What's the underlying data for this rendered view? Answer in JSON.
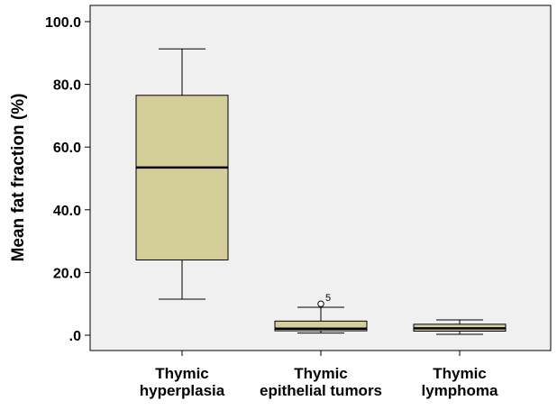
{
  "chart_data": {
    "type": "boxplot",
    "ylabel": "Mean fat fraction (%)",
    "ylim": [
      -5,
      105
    ],
    "yticks": [
      {
        "value": 0,
        "label": ".0"
      },
      {
        "value": 20,
        "label": "20.0"
      },
      {
        "value": 40,
        "label": "40.0"
      },
      {
        "value": 60,
        "label": "60.0"
      },
      {
        "value": 80,
        "label": "80.0"
      },
      {
        "value": 100,
        "label": "100.0"
      }
    ],
    "categories": [
      {
        "line1": "Thymic",
        "line2": "hyperplasia"
      },
      {
        "line1": "Thymic",
        "line2": "epithelial tumors"
      },
      {
        "line1": "Thymic",
        "line2": "lymphoma"
      }
    ],
    "boxes": [
      {
        "whisker_low": 11.5,
        "q1": 24.0,
        "median": 53.5,
        "q3": 76.5,
        "whisker_high": 91.3,
        "outliers": []
      },
      {
        "whisker_low": 0.7,
        "q1": 1.4,
        "median": 2.1,
        "q3": 4.5,
        "whisker_high": 8.9,
        "outliers": [
          {
            "value": 10.0,
            "label": "5"
          }
        ]
      },
      {
        "whisker_low": 0.3,
        "q1": 1.3,
        "median": 2.2,
        "q3": 3.5,
        "whisker_high": 4.9,
        "outliers": []
      }
    ],
    "colors": {
      "box_fill": "#d4cf99",
      "plot_bg": "#f0f0f0",
      "stroke": "#000000"
    }
  }
}
